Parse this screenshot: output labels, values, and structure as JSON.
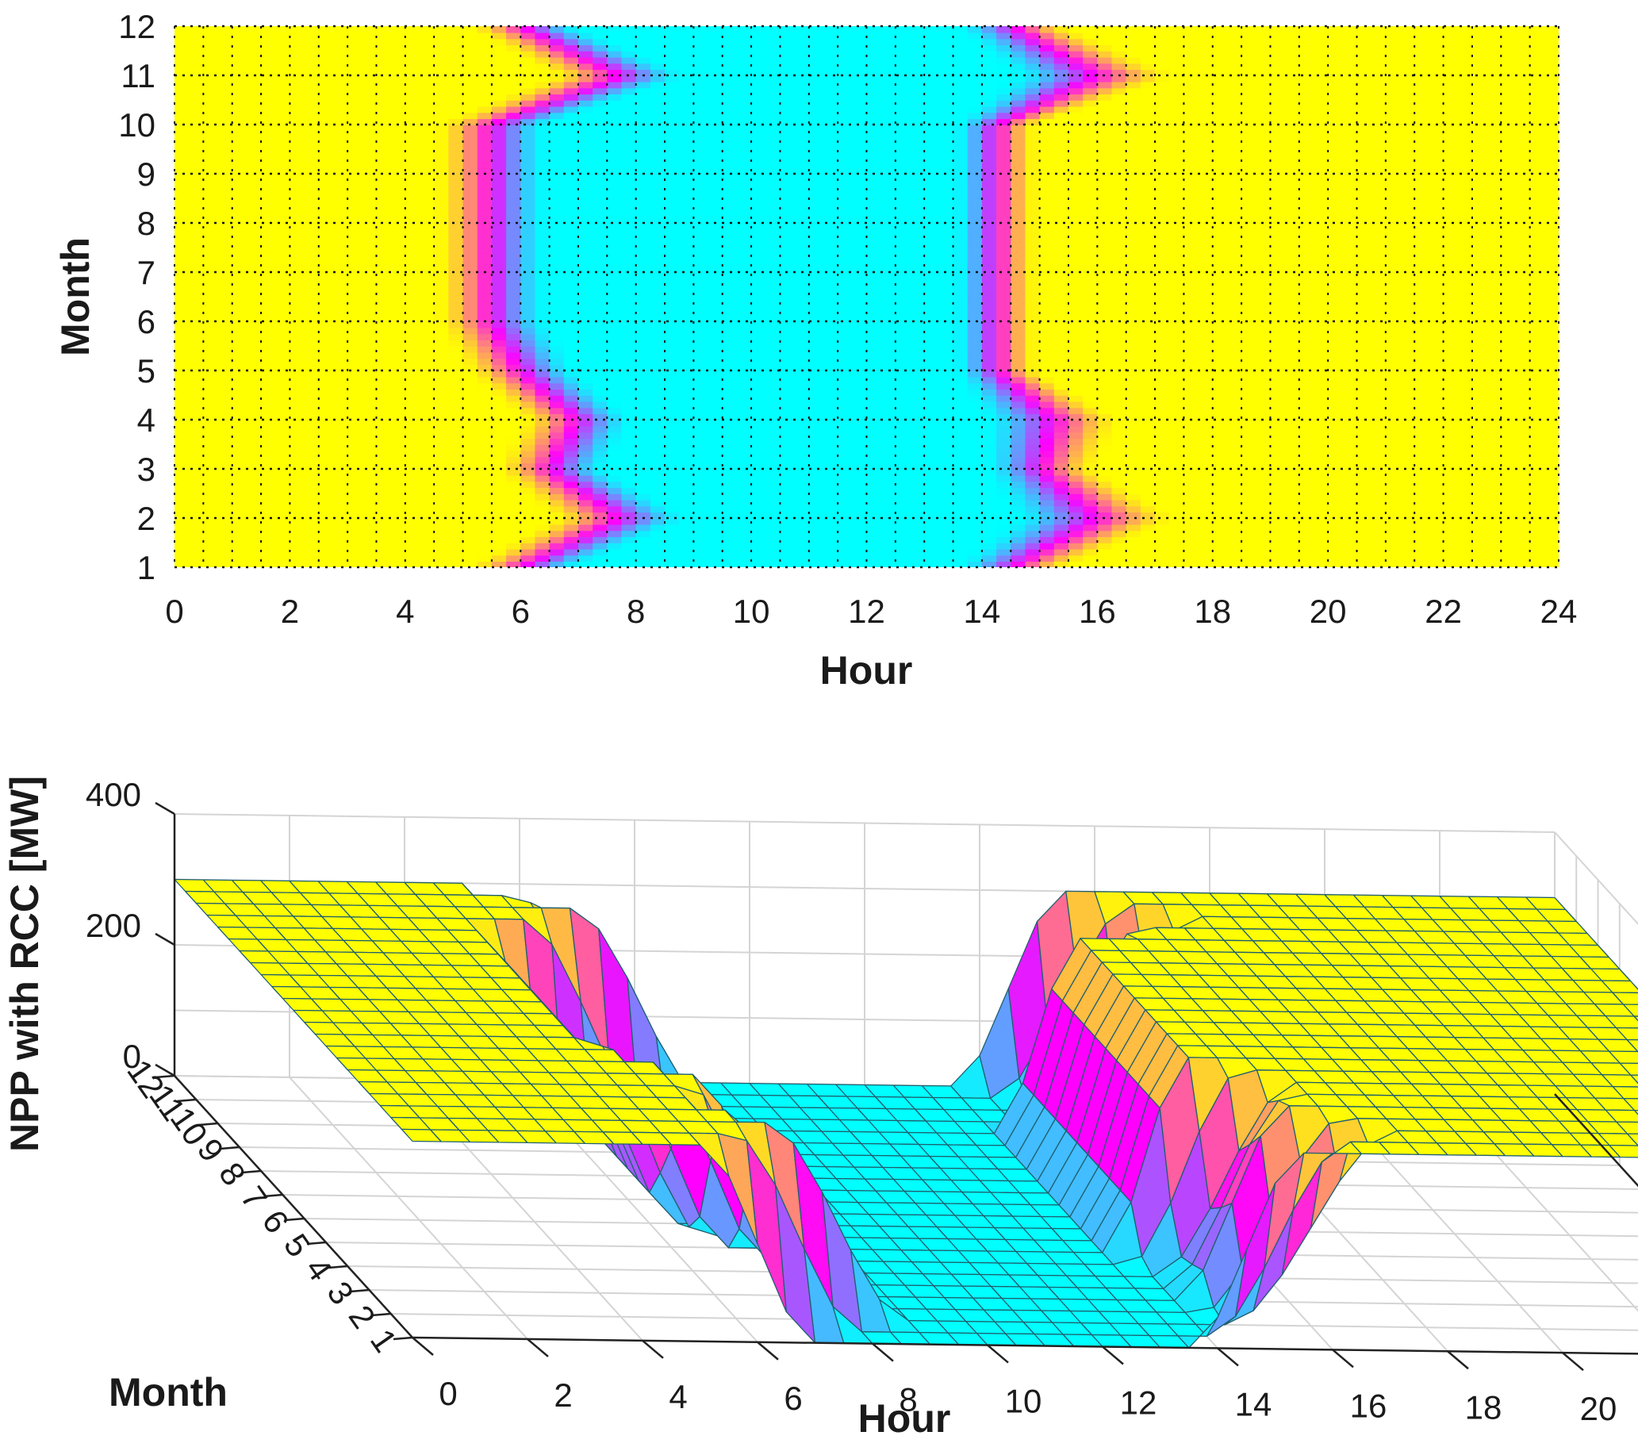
{
  "colors": {
    "low": "#00ffff",
    "mid": "#ff00ff",
    "high": "#ffff00",
    "grid": "#d4d4d4",
    "mesh": "#1f5f6f"
  },
  "chart_data": [
    {
      "type": "heatmap",
      "xlabel": "Hour",
      "ylabel": "Month",
      "xlim": [
        0,
        24
      ],
      "ylim": [
        1,
        12
      ],
      "xticks": [
        "0",
        "2",
        "4",
        "6",
        "8",
        "10",
        "12",
        "14",
        "16",
        "18",
        "20",
        "22",
        "24"
      ],
      "yticks": [
        "1",
        "2",
        "3",
        "4",
        "5",
        "6",
        "7",
        "8",
        "9",
        "10",
        "11",
        "12"
      ],
      "colormap": "spring-cyan (cyan = low, magenta = mid, yellow = high)",
      "value_range": [
        0,
        300
      ],
      "grid": "dotted",
      "hours": [
        0,
        0.5,
        1,
        1.5,
        2,
        2.5,
        3,
        3.5,
        4,
        4.5,
        5,
        5.5,
        6,
        6.5,
        7,
        7.5,
        8,
        8.5,
        9,
        9.5,
        10,
        10.5,
        11,
        11.5,
        12,
        12.5,
        13,
        13.5,
        14,
        14.5,
        15,
        15.5,
        16,
        16.5,
        17,
        17.5,
        18,
        18.5,
        19,
        19.5,
        20,
        20.5,
        21,
        21.5,
        22,
        22.5,
        23,
        23.5,
        24
      ],
      "months": [
        1,
        2,
        3,
        4,
        5,
        6,
        7,
        8,
        9,
        10,
        11,
        12
      ],
      "transitions": {
        "comment": "Hour at which output drops from high to low (morning) and rises from low to high (afternoon) for each month",
        "morning_ramp_start": [
          5.0,
          6.5,
          5.5,
          6.0,
          5.0,
          4.5,
          4.5,
          4.5,
          4.5,
          4.5,
          6.5,
          5.0
        ],
        "morning_ramp_end": [
          7.0,
          9.0,
          7.5,
          8.0,
          7.0,
          6.5,
          6.5,
          6.5,
          6.5,
          6.5,
          9.0,
          7.0
        ],
        "afternoon_ramp_start": [
          13.5,
          14.5,
          14.0,
          14.0,
          13.5,
          13.5,
          13.5,
          13.5,
          13.5,
          13.5,
          14.5,
          13.5
        ],
        "afternoon_ramp_end": [
          15.5,
          17.5,
          16.0,
          16.5,
          15.0,
          15.0,
          15.0,
          15.0,
          15.0,
          15.0,
          17.5,
          15.5
        ]
      }
    },
    {
      "type": "surface",
      "xlabel": "Hour",
      "ylabel": "Month",
      "zlabel": "NPP with RCC [MW]",
      "xlim": [
        0,
        24
      ],
      "ylim": [
        1,
        12
      ],
      "zlim": [
        0,
        400
      ],
      "xticks": [
        "0",
        "2",
        "4",
        "6",
        "8",
        "10",
        "12",
        "14",
        "16",
        "18",
        "20",
        "22",
        "24"
      ],
      "yticks": [
        "1",
        "2",
        "3",
        "4",
        "5",
        "6",
        "7",
        "8",
        "9",
        "10",
        "11",
        "12"
      ],
      "zticks": [
        "0",
        "200",
        "400"
      ],
      "grid": true,
      "high_level_MW": 300,
      "low_level_MW": 0
    }
  ]
}
